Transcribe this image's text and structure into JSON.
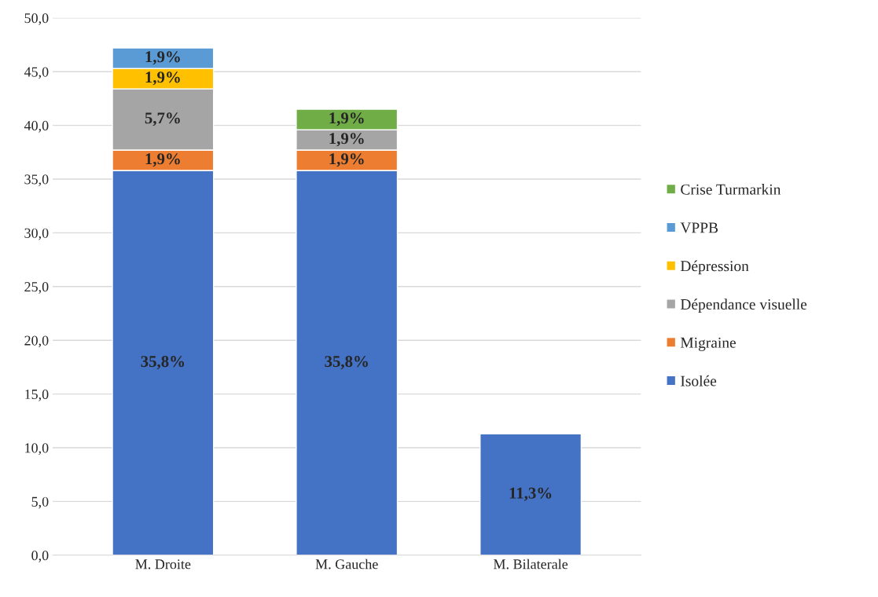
{
  "chart_data": {
    "type": "bar",
    "stacked": true,
    "categories": [
      "M. Droite",
      "M. Gauche",
      "M. Bilaterale"
    ],
    "series": [
      {
        "name": "Isolée",
        "color": "#4472c4",
        "values": [
          35.8,
          35.8,
          11.3
        ],
        "value_labels": [
          "35,8%",
          "35,8%",
          "11,3%"
        ]
      },
      {
        "name": "Migraine",
        "color": "#ed7d31",
        "values": [
          1.9,
          1.9,
          null
        ],
        "value_labels": [
          "1,9%",
          "1,9%",
          null
        ]
      },
      {
        "name": "Dépendance visuelle",
        "color": "#a5a5a5",
        "values": [
          5.7,
          1.9,
          null
        ],
        "value_labels": [
          "5,7%",
          "1,9%",
          null
        ]
      },
      {
        "name": "Dépression",
        "color": "#ffc000",
        "values": [
          1.9,
          null,
          null
        ],
        "value_labels": [
          "1,9%",
          null,
          null
        ]
      },
      {
        "name": "VPPB",
        "color": "#5b9bd5",
        "values": [
          1.9,
          null,
          null
        ],
        "value_labels": [
          "1,9%",
          null,
          null
        ]
      },
      {
        "name": "Crise Turmarkin",
        "color": "#70ad47",
        "values": [
          null,
          1.9,
          null
        ],
        "value_labels": [
          null,
          "1,9%",
          null
        ]
      }
    ],
    "ylim": [
      0,
      50
    ],
    "yticks": [
      {
        "value": 0,
        "label": "0,0"
      },
      {
        "value": 5,
        "label": "5,0"
      },
      {
        "value": 10,
        "label": "10,0"
      },
      {
        "value": 15,
        "label": "15,0"
      },
      {
        "value": 20,
        "label": "20,0"
      },
      {
        "value": 25,
        "label": "25,0"
      },
      {
        "value": 30,
        "label": "30,0"
      },
      {
        "value": 35,
        "label": "35,0"
      },
      {
        "value": 40,
        "label": "40,0"
      },
      {
        "value": 45,
        "label": "45,0"
      },
      {
        "value": 50,
        "label": "50,0"
      }
    ],
    "grid": "y",
    "legend": "right"
  }
}
